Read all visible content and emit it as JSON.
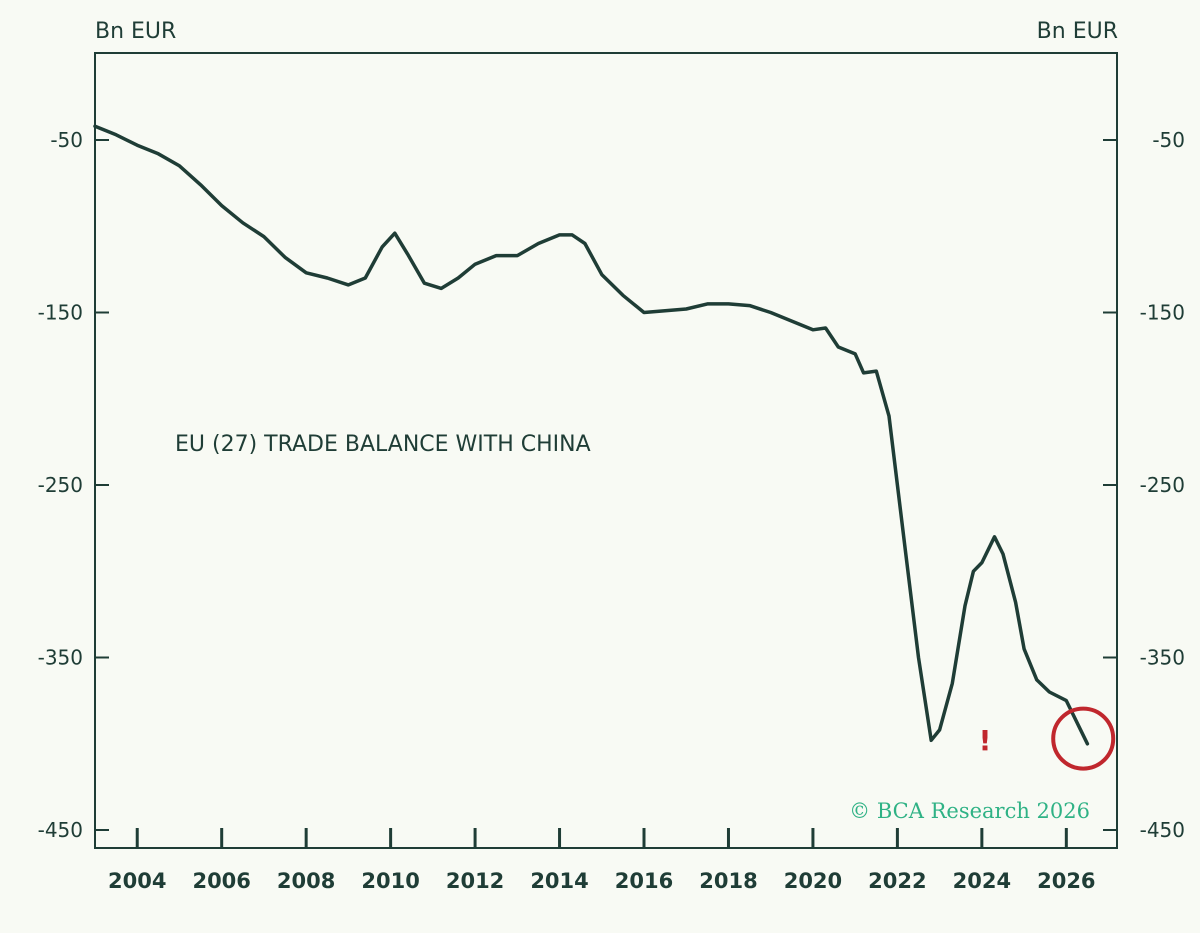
{
  "chart_data": {
    "type": "line",
    "title": "EU (27) TRADE BALANCE WITH CHINA",
    "y_unit_left": "Bn EUR",
    "y_unit_right": "Bn EUR",
    "ylim": [
      -450,
      0
    ],
    "yticks": [
      -50,
      -150,
      -250,
      -350,
      -450
    ],
    "xlim": [
      2003,
      2027.2
    ],
    "xticks": [
      2004,
      2006,
      2008,
      2010,
      2012,
      2014,
      2016,
      2018,
      2020,
      2022,
      2024,
      2026
    ],
    "grid": false,
    "series": [
      {
        "color": "#1f3d36",
        "x": [
          2003.0,
          2003.5,
          2004.0,
          2004.5,
          2005.0,
          2005.5,
          2006.0,
          2006.5,
          2007.0,
          2007.5,
          2008.0,
          2008.5,
          2009.0,
          2009.4,
          2009.8,
          2010.1,
          2010.4,
          2010.8,
          2011.2,
          2011.6,
          2012.0,
          2012.5,
          2013.0,
          2013.5,
          2014.0,
          2014.3,
          2014.6,
          2015.0,
          2015.5,
          2016.0,
          2016.5,
          2017.0,
          2017.5,
          2018.0,
          2018.5,
          2019.0,
          2019.5,
          2020.0,
          2020.3,
          2020.6,
          2021.0,
          2021.2,
          2021.5,
          2021.8,
          2022.0,
          2022.2,
          2022.5,
          2022.8,
          2023.0,
          2023.3,
          2023.6,
          2023.8,
          2024.0,
          2024.3,
          2024.5,
          2024.8,
          2025.0,
          2025.3,
          2025.6,
          2026.0,
          2026.5
        ],
        "y": [
          -42,
          -47,
          -53,
          -58,
          -65,
          -76,
          -88,
          -98,
          -106,
          -118,
          -127,
          -130,
          -134,
          -130,
          -112,
          -104,
          -116,
          -133,
          -136,
          -130,
          -122,
          -117,
          -117,
          -110,
          -105,
          -105,
          -110,
          -128,
          -140,
          -150,
          -149,
          -148,
          -145,
          -145,
          -146,
          -150,
          -155,
          -160,
          -159,
          -170,
          -174,
          -185,
          -184,
          -210,
          -250,
          -290,
          -350,
          -398,
          -392,
          -365,
          -320,
          -300,
          -295,
          -280,
          -290,
          -318,
          -345,
          -363,
          -370,
          -375,
          -400
        ]
      }
    ],
    "annotations": [
      {
        "text": "!",
        "color": "#c0272d"
      },
      {
        "shape": "circle",
        "x": 2026.4,
        "y": -397,
        "color": "#c0272d"
      }
    ]
  },
  "copyright": "© BCA Research 2026",
  "colors": {
    "line": "#1f3d36",
    "accent": "#c0272d",
    "brand": "#2fb285",
    "background": "#f8faf4"
  }
}
